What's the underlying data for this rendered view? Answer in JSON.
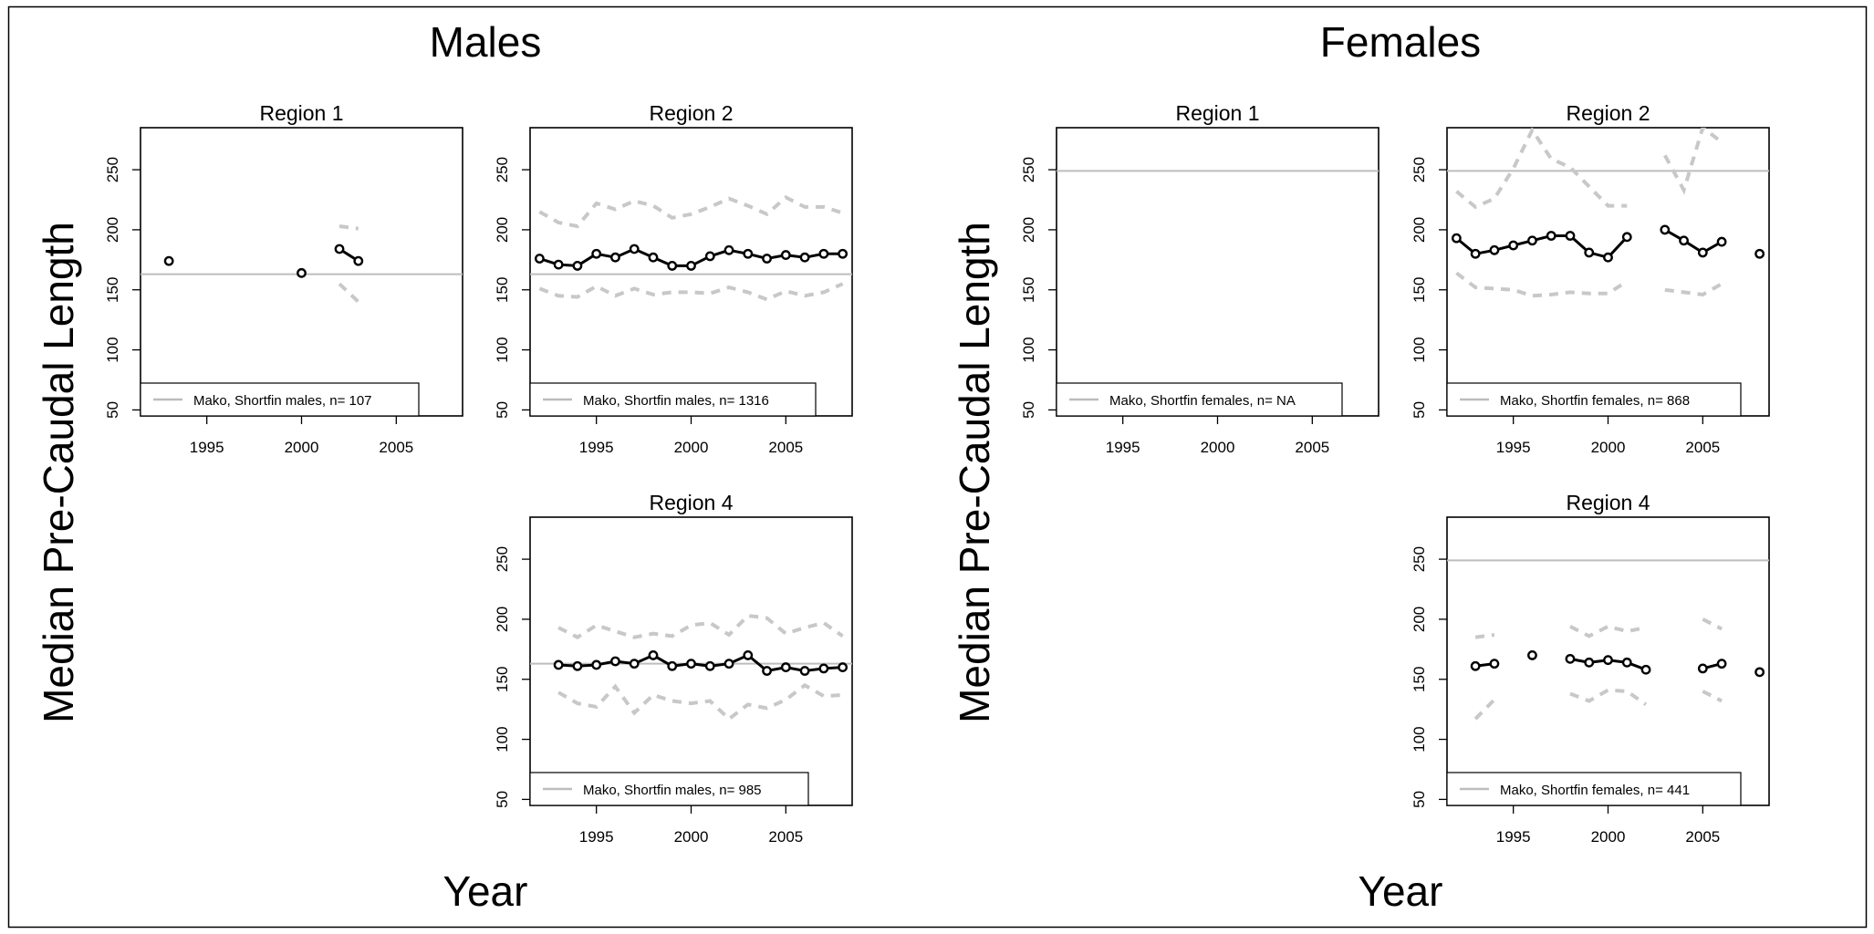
{
  "figure": {
    "males_title": "Males",
    "females_title": "Females",
    "y_axis_label": "Median Pre-Caudal Length",
    "x_axis_label": "Year"
  },
  "colors": {
    "median_line": "#000000",
    "quantile_band": "#c8c8c8",
    "reference_line": "#bdbdbd",
    "background": "#ffffff"
  },
  "chart_data": [
    {
      "type": "line",
      "group": "Males",
      "title": "Region 1",
      "legend": "Mako, Shortfin males, n= 107",
      "legend_position": "bottom-left",
      "xlim": [
        1991.5,
        2008.5
      ],
      "ylim": [
        45,
        285
      ],
      "xticks": [
        1995,
        2000,
        2005
      ],
      "yticks": [
        50,
        100,
        150,
        200,
        250
      ],
      "reference_line": 163,
      "series": [
        {
          "role": "median",
          "points": [
            [
              1993,
              174
            ],
            [
              2000,
              164
            ],
            [
              2002,
              184
            ],
            [
              2003,
              174
            ]
          ]
        },
        {
          "role": "upper",
          "points": [
            [
              2002,
              203
            ],
            [
              2003,
              201
            ]
          ]
        },
        {
          "role": "lower",
          "points": [
            [
              2002,
              155
            ],
            [
              2003,
              140
            ]
          ]
        }
      ]
    },
    {
      "type": "line",
      "group": "Males",
      "title": "Region 2",
      "legend": "Mako, Shortfin males, n= 1316",
      "legend_position": "bottom-left",
      "xlim": [
        1991.5,
        2008.5
      ],
      "ylim": [
        45,
        285
      ],
      "xticks": [
        1995,
        2000,
        2005
      ],
      "yticks": [
        50,
        100,
        150,
        200,
        250
      ],
      "reference_line": 163,
      "series": [
        {
          "role": "median",
          "points": [
            [
              1992,
              176
            ],
            [
              1993,
              171
            ],
            [
              1994,
              170
            ],
            [
              1995,
              180
            ],
            [
              1996,
              177
            ],
            [
              1997,
              184
            ],
            [
              1998,
              177
            ],
            [
              1999,
              170
            ],
            [
              2000,
              170
            ],
            [
              2001,
              178
            ],
            [
              2002,
              183
            ],
            [
              2003,
              180
            ],
            [
              2004,
              176
            ],
            [
              2005,
              179
            ],
            [
              2006,
              177
            ],
            [
              2007,
              180
            ],
            [
              2008,
              180
            ]
          ]
        },
        {
          "role": "upper",
          "points": [
            [
              1992,
              215
            ],
            [
              1993,
              206
            ],
            [
              1994,
              203
            ],
            [
              1995,
              222
            ],
            [
              1996,
              217
            ],
            [
              1997,
              224
            ],
            [
              1998,
              220
            ],
            [
              1999,
              210
            ],
            [
              2000,
              213
            ],
            [
              2001,
              219
            ],
            [
              2002,
              226
            ],
            [
              2003,
              220
            ],
            [
              2004,
              213
            ],
            [
              2005,
              227
            ],
            [
              2006,
              219
            ],
            [
              2007,
              219
            ],
            [
              2008,
              214
            ]
          ]
        },
        {
          "role": "lower",
          "points": [
            [
              1992,
              151
            ],
            [
              1993,
              145
            ],
            [
              1994,
              144
            ],
            [
              1995,
              153
            ],
            [
              1996,
              145
            ],
            [
              1997,
              151
            ],
            [
              1998,
              146
            ],
            [
              1999,
              148
            ],
            [
              2000,
              148
            ],
            [
              2001,
              147
            ],
            [
              2002,
              152
            ],
            [
              2003,
              148
            ],
            [
              2004,
              142
            ],
            [
              2005,
              149
            ],
            [
              2006,
              145
            ],
            [
              2007,
              148
            ],
            [
              2008,
              155
            ]
          ]
        }
      ]
    },
    {
      "type": "line",
      "group": "Males",
      "title": "Region 4",
      "legend": "Mako, Shortfin males, n= 985",
      "legend_position": "bottom-left",
      "xlim": [
        1991.5,
        2008.5
      ],
      "ylim": [
        45,
        285
      ],
      "xticks": [
        1995,
        2000,
        2005
      ],
      "yticks": [
        50,
        100,
        150,
        200,
        250
      ],
      "reference_line": 163,
      "series": [
        {
          "role": "median",
          "points": [
            [
              1993,
              162
            ],
            [
              1994,
              161
            ],
            [
              1995,
              162
            ],
            [
              1996,
              165
            ],
            [
              1997,
              163
            ],
            [
              1998,
              170
            ],
            [
              1999,
              161
            ],
            [
              2000,
              163
            ],
            [
              2001,
              161
            ],
            [
              2002,
              163
            ],
            [
              2003,
              170
            ],
            [
              2004,
              157
            ],
            [
              2005,
              160
            ],
            [
              2006,
              157
            ],
            [
              2007,
              159
            ],
            [
              2008,
              160
            ]
          ]
        },
        {
          "role": "upper",
          "points": [
            [
              1993,
              193
            ],
            [
              1994,
              185
            ],
            [
              1995,
              195
            ],
            [
              1996,
              190
            ],
            [
              1997,
              185
            ],
            [
              1998,
              188
            ],
            [
              1999,
              186
            ],
            [
              2000,
              195
            ],
            [
              2001,
              197
            ],
            [
              2002,
              187
            ],
            [
              2003,
              203
            ],
            [
              2004,
              201
            ],
            [
              2005,
              188
            ],
            [
              2006,
              193
            ],
            [
              2007,
              197
            ],
            [
              2008,
              186
            ]
          ]
        },
        {
          "role": "lower",
          "points": [
            [
              1993,
              139
            ],
            [
              1994,
              130
            ],
            [
              1995,
              127
            ],
            [
              1996,
              144
            ],
            [
              1997,
              122
            ],
            [
              1998,
              137
            ],
            [
              1999,
              132
            ],
            [
              2000,
              130
            ],
            [
              2001,
              132
            ],
            [
              2002,
              117
            ],
            [
              2003,
              129
            ],
            [
              2004,
              126
            ],
            [
              2005,
              133
            ],
            [
              2006,
              145
            ],
            [
              2007,
              136
            ],
            [
              2008,
              137
            ]
          ]
        }
      ]
    },
    {
      "type": "line",
      "group": "Females",
      "title": "Region 1",
      "legend": "Mako, Shortfin females, n= NA",
      "legend_position": "bottom-left",
      "xlim": [
        1991.5,
        2008.5
      ],
      "ylim": [
        45,
        285
      ],
      "xticks": [
        1995,
        2000,
        2005
      ],
      "yticks": [
        50,
        100,
        150,
        200,
        250
      ],
      "reference_line": 249,
      "series": []
    },
    {
      "type": "line",
      "group": "Females",
      "title": "Region 2",
      "legend": "Mako, Shortfin females, n= 868",
      "legend_position": "bottom-left",
      "xlim": [
        1991.5,
        2008.5
      ],
      "ylim": [
        45,
        285
      ],
      "xticks": [
        1995,
        2000,
        2005
      ],
      "yticks": [
        50,
        100,
        150,
        200,
        250
      ],
      "reference_line": 249,
      "series": [
        {
          "role": "median",
          "points": [
            [
              1992,
              193
            ],
            [
              1993,
              180
            ],
            [
              1994,
              183
            ],
            [
              1995,
              187
            ],
            [
              1996,
              191
            ],
            [
              1997,
              195
            ],
            [
              1998,
              195
            ],
            [
              1999,
              181
            ],
            [
              2000,
              177
            ],
            [
              2001,
              194
            ],
            [
              2003,
              200
            ],
            [
              2004,
              191
            ],
            [
              2005,
              181
            ],
            [
              2006,
              190
            ],
            [
              2008,
              180
            ]
          ]
        },
        {
          "role": "upper",
          "points": [
            [
              1992,
              232
            ],
            [
              1993,
              219
            ],
            [
              1994,
              226
            ],
            [
              1995,
              251
            ],
            [
              1996,
              283
            ],
            [
              1997,
              259
            ],
            [
              1998,
              252
            ],
            [
              1999,
              236
            ],
            [
              2000,
              220
            ],
            [
              2001,
              220
            ],
            [
              2003,
              262
            ],
            [
              2004,
              233
            ],
            [
              2005,
              285
            ],
            [
              2006,
              273
            ]
          ]
        },
        {
          "role": "lower",
          "points": [
            [
              1992,
              164
            ],
            [
              1993,
              152
            ],
            [
              1994,
              151
            ],
            [
              1995,
              150
            ],
            [
              1996,
              145
            ],
            [
              1997,
              146
            ],
            [
              1998,
              148
            ],
            [
              1999,
              147
            ],
            [
              2000,
              147
            ],
            [
              2001,
              157
            ],
            [
              2003,
              150
            ],
            [
              2004,
              148
            ],
            [
              2005,
              146
            ],
            [
              2006,
              155
            ]
          ]
        }
      ]
    },
    {
      "type": "line",
      "group": "Females",
      "title": "Region 4",
      "legend": "Mako, Shortfin females, n= 441",
      "legend_position": "bottom-left",
      "xlim": [
        1991.5,
        2008.5
      ],
      "ylim": [
        45,
        285
      ],
      "xticks": [
        1995,
        2000,
        2005
      ],
      "yticks": [
        50,
        100,
        150,
        200,
        250
      ],
      "reference_line": 249,
      "series": [
        {
          "role": "median",
          "points": [
            [
              1993,
              161
            ],
            [
              1994,
              163
            ],
            [
              1996,
              170
            ],
            [
              1998,
              167
            ],
            [
              1999,
              164
            ],
            [
              2000,
              166
            ],
            [
              2001,
              164
            ],
            [
              2002,
              158
            ],
            [
              2005,
              159
            ],
            [
              2006,
              163
            ],
            [
              2008,
              156
            ]
          ]
        },
        {
          "role": "upper",
          "points": [
            [
              1993,
              185
            ],
            [
              1994,
              187
            ],
            [
              1998,
              194
            ],
            [
              1999,
              186
            ],
            [
              2000,
              194
            ],
            [
              2001,
              190
            ],
            [
              2002,
              193
            ],
            [
              2005,
              200
            ],
            [
              2006,
              192
            ]
          ]
        },
        {
          "role": "lower",
          "points": [
            [
              1993,
              117
            ],
            [
              1994,
              133
            ],
            [
              1998,
              138
            ],
            [
              1999,
              132
            ],
            [
              2000,
              141
            ],
            [
              2001,
              140
            ],
            [
              2002,
              129
            ],
            [
              2005,
              140
            ],
            [
              2006,
              132
            ]
          ]
        }
      ]
    }
  ]
}
